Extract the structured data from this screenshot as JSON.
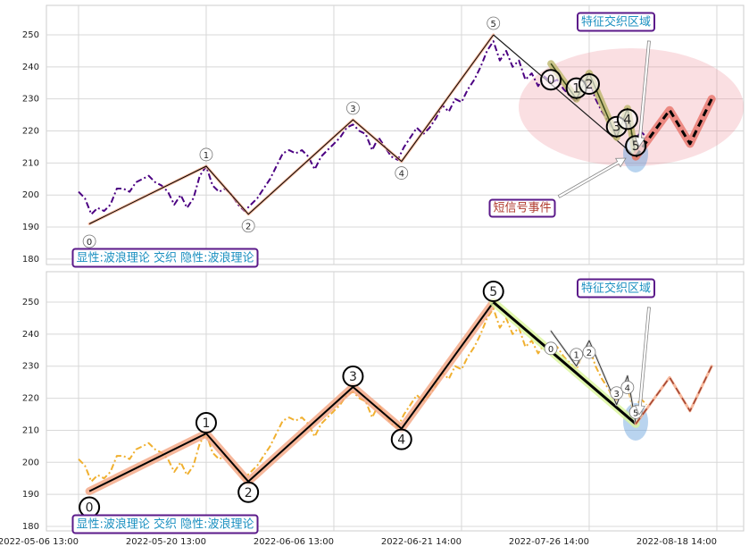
{
  "chart_data": [
    {
      "type": "line",
      "ylim": [
        178.3,
        259.2
      ],
      "yticks": [
        180,
        190,
        200,
        210,
        220,
        230,
        240,
        250
      ],
      "grid": true,
      "xlim": [
        -5.03,
        104.2
      ],
      "series": [
        {
          "color": "#4b0082",
          "linestyle": "dashdot",
          "linewidth": 2,
          "values": [
            201,
            199,
            194,
            196,
            195,
            197,
            202,
            202,
            201,
            204,
            205,
            206,
            204,
            203,
            201,
            197,
            200,
            196,
            199,
            206,
            209,
            203,
            201,
            202,
            200,
            197,
            195,
            197,
            199,
            202,
            205,
            209,
            213,
            214,
            213,
            214,
            212,
            208,
            212,
            214,
            216,
            218,
            221,
            222,
            220,
            219,
            214,
            218,
            215,
            212,
            211,
            215,
            218,
            221,
            219,
            221,
            224,
            228,
            226,
            230,
            229,
            233,
            236,
            240,
            245,
            248,
            242,
            245,
            240,
            242,
            236,
            238,
            234,
            237,
            235,
            236,
            233,
            231,
            229,
            234,
            236,
            230,
            226,
            223,
            219,
            221,
            224,
            215,
            220,
            218
          ]
        },
        {
          "color": "#000000",
          "linestyle": "solid",
          "linewidth": 1,
          "glow": "#f4a582",
          "glowwidth": 3,
          "label_style": "small",
          "x": [
            1.7,
            20,
            26.6,
            43,
            50.6,
            65
          ],
          "values": [
            191,
            209,
            194,
            223.5,
            210.5,
            250
          ],
          "labels": [
            "0",
            "1",
            "2",
            "3",
            "4",
            "5"
          ]
        },
        {
          "color": "#1a1a1a",
          "linestyle": "solid",
          "linewidth": 1.2,
          "x": [
            65,
            87.3
          ],
          "values": [
            250,
            212
          ]
        },
        {
          "color": "#3b4a1a",
          "linestyle": "solid",
          "linewidth": 1.5,
          "glow": "#bdb76b",
          "glowwidth": 8,
          "label_style": "large",
          "x": [
            74,
            78,
            80,
            84.3,
            86,
            87.3
          ],
          "values": [
            241,
            230,
            238,
            218,
            227,
            212
          ],
          "labels": [
            "0",
            "1",
            "2",
            "3",
            "4",
            "5"
          ]
        },
        {
          "color": "#000000",
          "linestyle": "dashed",
          "linewidth": 3,
          "glow": "#e8736a",
          "glowwidth": 9,
          "x": [
            87.3,
            92.6,
            95.8,
            99.2
          ],
          "values": [
            212,
            226.5,
            216,
            230
          ]
        }
      ],
      "annotations": [
        "特征交织区域",
        "短信号事件",
        "显性:波浪理论 交织 隐性:波浪理论"
      ]
    },
    {
      "type": "line",
      "ylim": [
        178.6,
        259.5
      ],
      "yticks": [
        180,
        190,
        200,
        210,
        220,
        230,
        240,
        250
      ],
      "grid": true,
      "xlim": [
        -5.03,
        104.2
      ],
      "xticks": [
        {
          "value": 0,
          "label": "2022-05-06 13:00"
        },
        {
          "value": 20,
          "label": "2022-05-20 13:00"
        },
        {
          "value": 40,
          "label": "2022-06-06 13:00"
        },
        {
          "value": 60,
          "label": "2022-06-21 14:00"
        },
        {
          "value": 80,
          "label": "2022-07-26 14:00"
        },
        {
          "value": 100,
          "label": "2022-08-18 14:00"
        }
      ],
      "series": [
        {
          "color": "#f0b030",
          "linestyle": "dashdot",
          "linewidth": 2,
          "values": [
            201,
            199,
            194,
            196,
            195,
            197,
            202,
            202,
            201,
            204,
            205,
            206,
            204,
            203,
            201,
            197,
            200,
            196,
            199,
            206,
            209,
            203,
            201,
            202,
            200,
            197,
            195,
            197,
            199,
            202,
            205,
            209,
            213,
            214,
            213,
            214,
            212,
            208,
            212,
            214,
            216,
            218,
            221,
            222,
            220,
            219,
            214,
            218,
            215,
            212,
            211,
            215,
            218,
            221,
            219,
            221,
            224,
            228,
            226,
            230,
            229,
            233,
            236,
            240,
            245,
            248,
            242,
            245,
            240,
            242,
            236,
            238,
            234,
            237,
            235,
            236,
            233,
            231,
            229,
            234,
            236,
            230,
            226,
            223,
            219,
            221,
            224,
            215,
            220,
            218
          ]
        },
        {
          "color": "#000000",
          "linestyle": "solid",
          "linewidth": 2,
          "glow": "#f4a582",
          "glowwidth": 9,
          "label_style": "large",
          "x": [
            1.7,
            20,
            26.6,
            43,
            50.6,
            65
          ],
          "values": [
            191,
            209,
            194,
            223.5,
            210.5,
            250
          ],
          "labels": [
            "0",
            "1",
            "2",
            "3",
            "4",
            "5"
          ]
        },
        {
          "color": "#000000",
          "linestyle": "solid",
          "linewidth": 3,
          "glow": "#d9f59a",
          "glowwidth": 9,
          "x": [
            65,
            87.3
          ],
          "values": [
            250,
            212
          ]
        },
        {
          "color": "#333333",
          "linestyle": "solid",
          "linewidth": 1,
          "glow": "#dddddd",
          "glowwidth": 3,
          "label_style": "small",
          "x": [
            74,
            78,
            80,
            84.3,
            86,
            87.3
          ],
          "values": [
            241,
            230,
            238,
            218,
            227,
            212
          ],
          "labels": [
            "0",
            "1",
            "2",
            "3",
            "4",
            "5"
          ]
        },
        {
          "color": "#a0412e",
          "linestyle": "dashed",
          "linewidth": 1.5,
          "glow": "#f4a582",
          "glowwidth": 3,
          "x": [
            87.3,
            92.6,
            95.8,
            99.2
          ],
          "values": [
            212,
            226.5,
            216,
            230
          ]
        }
      ],
      "annotations": [
        "特征交织区域",
        "显性:波浪理论 交织 隐性:波浪理论"
      ]
    }
  ]
}
